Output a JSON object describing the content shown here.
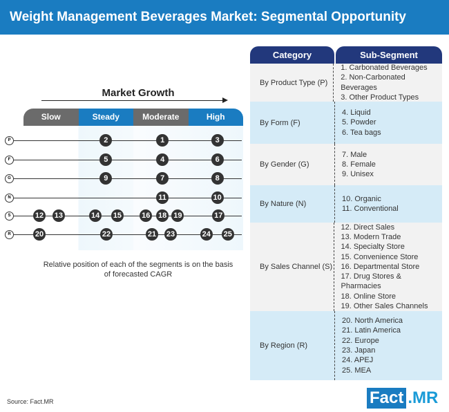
{
  "title": "Weight Management Beverages Market: Segmental Opportunity Analysis",
  "chart": {
    "growth_label": "Market Growth",
    "columns": [
      "Slow",
      "Steady",
      "Moderate",
      "High"
    ],
    "rows": [
      {
        "code": "P",
        "points": [
          {
            "id": "2",
            "pos": 1.5
          },
          {
            "id": "1",
            "pos": 2.53
          },
          {
            "id": "3",
            "pos": 3.53
          }
        ]
      },
      {
        "code": "F",
        "points": [
          {
            "id": "5",
            "pos": 1.5
          },
          {
            "id": "4",
            "pos": 2.53
          },
          {
            "id": "6",
            "pos": 3.53
          }
        ]
      },
      {
        "code": "G",
        "points": [
          {
            "id": "9",
            "pos": 1.5
          },
          {
            "id": "7",
            "pos": 2.53
          },
          {
            "id": "8",
            "pos": 3.53
          }
        ]
      },
      {
        "code": "N",
        "points": [
          {
            "id": "11",
            "pos": 2.53
          },
          {
            "id": "10",
            "pos": 3.53
          }
        ]
      },
      {
        "code": "S",
        "points": [
          {
            "id": "12",
            "pos": 0.29
          },
          {
            "id": "13",
            "pos": 0.64
          },
          {
            "id": "14",
            "pos": 1.31
          },
          {
            "id": "15",
            "pos": 1.71
          },
          {
            "id": "16",
            "pos": 2.23
          },
          {
            "id": "18",
            "pos": 2.53
          },
          {
            "id": "19",
            "pos": 2.81
          },
          {
            "id": "17",
            "pos": 3.55
          }
        ]
      },
      {
        "code": "R",
        "points": [
          {
            "id": "20",
            "pos": 0.29
          },
          {
            "id": "22",
            "pos": 1.51
          },
          {
            "id": "21",
            "pos": 2.34
          },
          {
            "id": "23",
            "pos": 2.68
          },
          {
            "id": "24",
            "pos": 3.33
          },
          {
            "id": "25",
            "pos": 3.72
          }
        ]
      }
    ],
    "note": "Relative position of each of the segments is on the basis of forecasted CAGR"
  },
  "table": {
    "headers": [
      "Category",
      "Sub-Segment"
    ],
    "rows": [
      {
        "category": "By Product Type (P)",
        "subs": [
          "1. Carbonated Beverages",
          "2. Non-Carbonated Beverages",
          "3. Other Product Types"
        ]
      },
      {
        "category": "By Form (F)",
        "subs": [
          "4. Liquid",
          "5. Powder",
          "6. Tea bags"
        ]
      },
      {
        "category": "By Gender (G)",
        "subs": [
          "7. Male",
          "8. Female",
          "9. Unisex"
        ]
      },
      {
        "category": "By Nature (N)",
        "subs": [
          "10. Organic",
          "11. Conventional"
        ]
      },
      {
        "category": "By Sales Channel (S)",
        "subs": [
          "12. Direct Sales",
          "13. Modern Trade",
          "14. Specialty Store",
          "15. Convenience Store",
          "16. Departmental Store",
          "17. Drug Stores & Pharmacies",
          "18. Online Store",
          "19. Other Sales Channels"
        ]
      },
      {
        "category": "By Region (R)",
        "subs": [
          "20. North America",
          "21. Latin America",
          "22. Europe",
          "23. Japan",
          "24. APEJ",
          "25. MEA"
        ]
      }
    ]
  },
  "source": "Source: Fact.MR",
  "logo": {
    "part1": "Fact",
    "part2": ".MR"
  }
}
